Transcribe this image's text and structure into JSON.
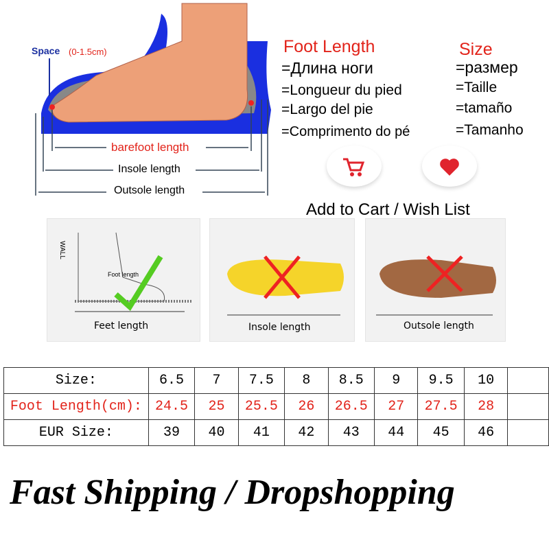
{
  "diagram": {
    "space": "Space",
    "space_range": "(0-1.5cm)",
    "barefoot": "barefoot length",
    "insole": "Insole length",
    "outsole": "Outsole length"
  },
  "foot_length": {
    "title": "Foot Length",
    "lines": [
      "=Длина ноги",
      "=Longueur du pied",
      "=Largo del pie",
      "=Comprimento do pé"
    ]
  },
  "size": {
    "title": "Size",
    "lines": [
      "=размер",
      "=Taille",
      "=tamaño",
      "=Tamanho"
    ]
  },
  "actions": {
    "cart_icon": "cart-icon",
    "wish_icon": "heart-icon",
    "label": "Add to Cart / Wish List",
    "heart_color": "#e0242d",
    "cart_color": "#e0242d"
  },
  "panels": [
    {
      "label": "Feet length",
      "wall": "WALL",
      "inner": "Foot length",
      "mark": "check"
    },
    {
      "label": "Insole length",
      "mark": "cross"
    },
    {
      "label": "Outsole length",
      "mark": "cross"
    }
  ],
  "table": {
    "headers": [
      "Size:",
      "Foot Length(cm):",
      "EUR Size:"
    ],
    "sizes": [
      "6.5",
      "7",
      "7.5",
      "8",
      "8.5",
      "9",
      "9.5",
      "10"
    ],
    "foot_length": [
      "24.5",
      "25",
      "25.5",
      "26",
      "26.5",
      "27",
      "27.5",
      "28"
    ],
    "eur": [
      "39",
      "40",
      "41",
      "42",
      "43",
      "44",
      "45",
      "46"
    ]
  },
  "footer": "Fast Shipping / Dropshopping"
}
